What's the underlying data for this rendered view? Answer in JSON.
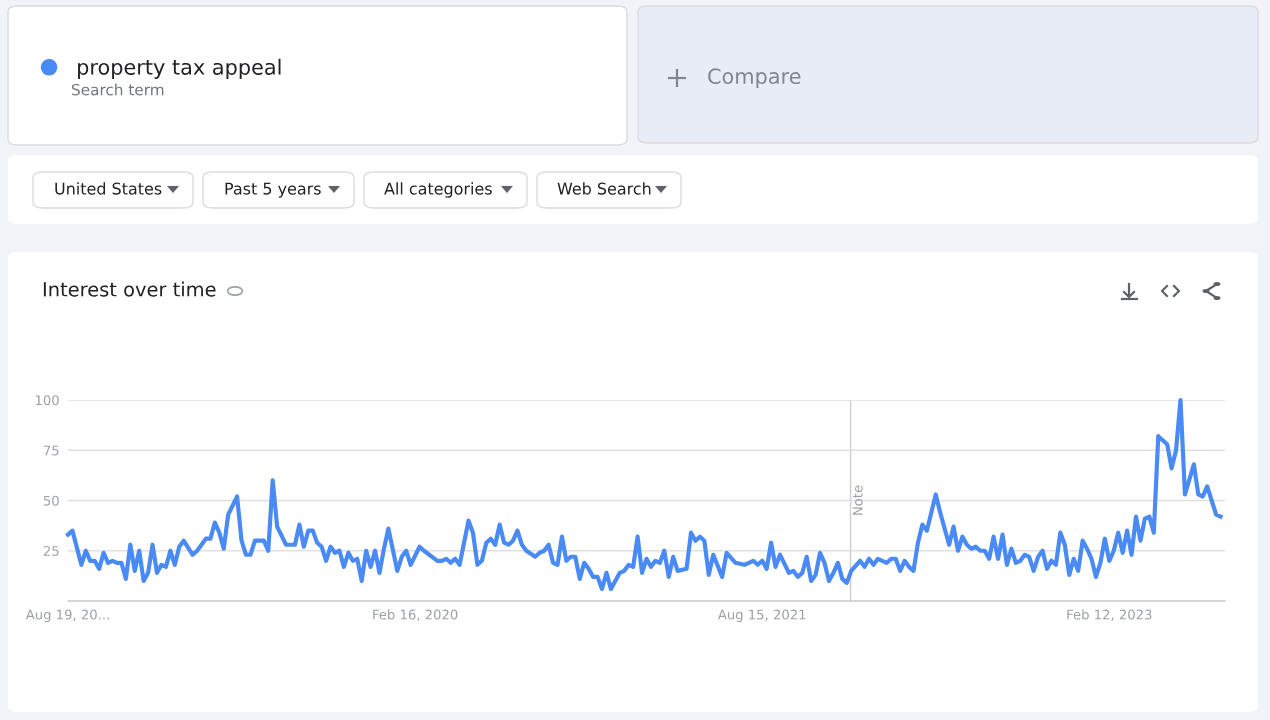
{
  "chart_data": {
    "type": "line",
    "title": "Interest over time",
    "annotations": [
      "Search term",
      "Compare",
      "United States",
      "Past 5 years",
      "All categories",
      "Web Search"
    ],
    "legend": "top left",
    "x": [
      "2018-08-19",
      "2018-08-26",
      "2018-09-09",
      "2018-09-16",
      "2018-09-23",
      "2018-09-30",
      "2018-10-07",
      "2018-10-14",
      "2018-10-21",
      "2018-10-28",
      "2018-11-04",
      "2018-11-11",
      "2018-11-18",
      "2018-11-25",
      "2018-12-02",
      "2018-12-09",
      "2018-12-16",
      "2018-12-23",
      "2018-12-30",
      "2019-01-06",
      "2019-01-13",
      "2019-01-20",
      "2019-01-27",
      "2019-02-03",
      "2019-02-10",
      "2019-02-17",
      "2019-03-03",
      "2019-03-10",
      "2019-03-24",
      "2019-03-31",
      "2019-04-07",
      "2019-04-14",
      "2019-04-21",
      "2019-04-28",
      "2019-05-12",
      "2019-05-19",
      "2019-05-26",
      "2019-06-02",
      "2019-06-09",
      "2019-06-23",
      "2019-06-30",
      "2019-07-07",
      "2019-07-14",
      "2019-07-28",
      "2019-08-11",
      "2019-08-18",
      "2019-08-25",
      "2019-09-01",
      "2019-09-08",
      "2019-09-15",
      "2019-09-22",
      "2019-09-29",
      "2019-10-06",
      "2019-10-13",
      "2019-10-20",
      "2019-10-27",
      "2019-11-03",
      "2019-11-10",
      "2019-11-17",
      "2019-11-24",
      "2019-12-01",
      "2019-12-08",
      "2019-12-15",
      "2019-12-22",
      "2019-12-29",
      "2020-01-05",
      "2020-01-19",
      "2020-01-26",
      "2020-02-02",
      "2020-02-09",
      "2020-02-23",
      "2020-03-01",
      "2020-03-22",
      "2020-03-29",
      "2020-04-05",
      "2020-04-12",
      "2020-04-19",
      "2020-04-26",
      "2020-05-10",
      "2020-05-17",
      "2020-05-24",
      "2020-05-31",
      "2020-06-07",
      "2020-06-14",
      "2020-06-21",
      "2020-06-28",
      "2020-07-05",
      "2020-07-12",
      "2020-07-19",
      "2020-07-26",
      "2020-08-02",
      "2020-08-09",
      "2020-08-23",
      "2020-08-30",
      "2020-09-06",
      "2020-09-13",
      "2020-09-20",
      "2020-09-27",
      "2020-10-04",
      "2020-10-11",
      "2020-10-18",
      "2020-10-25",
      "2020-11-01",
      "2020-11-08",
      "2020-11-15",
      "2020-11-22",
      "2020-11-29",
      "2020-12-06",
      "2020-12-13",
      "2020-12-20",
      "2021-01-03",
      "2021-01-10",
      "2021-01-17",
      "2021-01-24",
      "2021-01-31",
      "2021-02-07",
      "2021-02-14",
      "2021-02-21",
      "2021-02-28",
      "2021-03-07",
      "2021-03-14",
      "2021-03-21",
      "2021-03-28",
      "2021-04-04",
      "2021-04-18",
      "2021-04-25",
      "2021-05-02",
      "2021-05-09",
      "2021-05-16",
      "2021-05-23",
      "2021-05-30",
      "2021-06-13",
      "2021-06-20",
      "2021-07-04",
      "2021-07-18",
      "2021-08-01",
      "2021-08-08",
      "2021-08-15",
      "2021-08-22",
      "2021-08-29",
      "2021-09-05",
      "2021-09-12",
      "2021-09-26",
      "2021-10-03",
      "2021-10-10",
      "2021-10-17",
      "2021-10-24",
      "2021-10-31",
      "2021-11-07",
      "2021-11-14",
      "2021-11-21",
      "2021-11-28",
      "2021-12-05",
      "2021-12-12",
      "2021-12-19",
      "2021-12-26",
      "2022-01-02",
      "2022-01-16",
      "2022-01-23",
      "2022-01-30",
      "2022-02-06",
      "2022-02-13",
      "2022-02-27",
      "2022-03-06",
      "2022-03-13",
      "2022-03-20",
      "2022-03-27",
      "2022-04-03",
      "2022-04-10",
      "2022-04-17",
      "2022-04-24",
      "2022-05-01",
      "2022-05-15",
      "2022-05-22",
      "2022-06-05",
      "2022-06-12",
      "2022-06-19",
      "2022-06-26",
      "2022-07-03",
      "2022-07-10",
      "2022-07-17",
      "2022-07-24",
      "2022-07-31",
      "2022-08-07",
      "2022-08-14",
      "2022-08-21",
      "2022-08-28",
      "2022-09-04",
      "2022-09-11",
      "2022-09-18",
      "2022-09-25",
      "2022-10-02",
      "2022-10-09",
      "2022-10-16",
      "2022-10-23",
      "2022-10-30",
      "2022-11-06",
      "2022-11-13",
      "2022-11-20",
      "2022-11-27",
      "2022-12-04",
      "2022-12-11",
      "2022-12-18",
      "2022-12-25",
      "2023-01-01",
      "2023-01-08",
      "2023-01-15",
      "2023-01-22",
      "2023-01-29",
      "2023-02-05",
      "2023-02-12",
      "2023-02-19",
      "2023-02-26",
      "2023-03-05",
      "2023-03-12",
      "2023-03-19",
      "2023-03-26",
      "2023-04-02",
      "2023-04-09",
      "2023-04-16",
      "2023-04-23",
      "2023-04-30",
      "2023-05-07",
      "2023-05-14",
      "2023-05-21",
      "2023-05-28",
      "2023-06-04",
      "2023-06-11",
      "2023-06-25",
      "2023-07-02",
      "2023-07-09",
      "2023-07-16",
      "2023-07-23",
      "2023-07-30",
      "2023-08-06"
    ],
    "series": [
      {
        "name": "property tax appeal",
        "color": "#4a8af4",
        "values": [
          33,
          35,
          18,
          25,
          20,
          20,
          16,
          24,
          19,
          20,
          19,
          19,
          11,
          28,
          15,
          25,
          10,
          14,
          28,
          14,
          18,
          17,
          25,
          18,
          27,
          30,
          23,
          25,
          31,
          31,
          39,
          34,
          26,
          43,
          52,
          30,
          23,
          23,
          30,
          30,
          25,
          60,
          37,
          28,
          28,
          38,
          27,
          35,
          35,
          29,
          27,
          20,
          27,
          24,
          25,
          17,
          24,
          20,
          21,
          10,
          25,
          17,
          25,
          14,
          26,
          36,
          15,
          22,
          25,
          18,
          27,
          25,
          20,
          20,
          21,
          19,
          21,
          18,
          40,
          34,
          18,
          20,
          29,
          31,
          28,
          38,
          29,
          28,
          30,
          35,
          28,
          25,
          22,
          24,
          25,
          28,
          19,
          18,
          32,
          20,
          22,
          22,
          11,
          19,
          16,
          12,
          12,
          6,
          14,
          6,
          14,
          15,
          18,
          17,
          32,
          14,
          21,
          17,
          20,
          19,
          25,
          12,
          22,
          15,
          16,
          34,
          30,
          32,
          30,
          13,
          23,
          12,
          24,
          19,
          18,
          20,
          18,
          20,
          16,
          29,
          17,
          23,
          14,
          15,
          12,
          14,
          22,
          10,
          13,
          24,
          19,
          10,
          14,
          19,
          11,
          9,
          15,
          20,
          17,
          21,
          18,
          21,
          19,
          21,
          21,
          15,
          20,
          17,
          15,
          29,
          38,
          35,
          53,
          44,
          28,
          37,
          25,
          32,
          28,
          26,
          27,
          25,
          25,
          21,
          32,
          21,
          33,
          18,
          26,
          19,
          20,
          23,
          22,
          15,
          22,
          25,
          16,
          20,
          18,
          34,
          28,
          13,
          21,
          15,
          30,
          26,
          21,
          12,
          19,
          31,
          20,
          25,
          34,
          24,
          35,
          23,
          42,
          30,
          41,
          42,
          34,
          82,
          80,
          78,
          66,
          75,
          100,
          53,
          68,
          53,
          52,
          57,
          50,
          43,
          42
        ]
      }
    ],
    "xlim": [
      "2018-08-19",
      "2023-08-13"
    ],
    "xticks": [
      {
        "value": "2018-08-19",
        "label": "Aug 19, 20..."
      },
      {
        "value": "2020-02-16",
        "label": "Feb 16, 2020"
      },
      {
        "value": "2021-08-15",
        "label": "Aug 15, 2021"
      },
      {
        "value": "2023-02-12",
        "label": "Feb 12, 2023"
      }
    ],
    "ylim": [
      0,
      100
    ],
    "yticks": [
      25,
      50,
      75,
      100
    ],
    "grid": "y",
    "line_style": "solid",
    "ref_lines": [
      {
        "axis": "x",
        "value": "2022-01-01",
        "label": "Note",
        "color": "#cccccc"
      }
    ]
  }
}
